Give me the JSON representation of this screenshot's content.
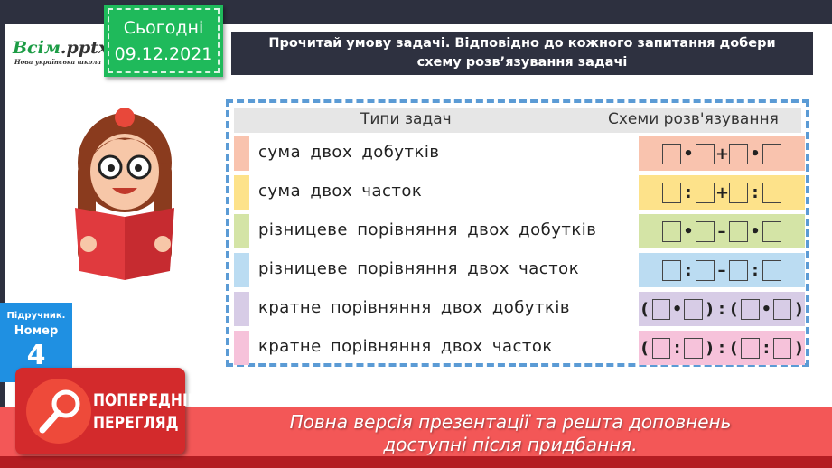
{
  "logo": {
    "brand_main": "Всім",
    "brand_ext": ".pptx",
    "tagline": "Нова українська школа"
  },
  "date_badge": {
    "label": "Сьогодні",
    "date": "09.12.2021"
  },
  "title": {
    "line1": "Прочитай умову задачі. Відповідно до кожного запитання добери",
    "line2": "схему розв’язування задачі"
  },
  "table": {
    "col1": "Типи задач",
    "col2": "Схеми розв'язування",
    "rows": [
      {
        "type": "сума двох добутків",
        "scheme": "□·□+□·□",
        "color": "#f9c3ae"
      },
      {
        "type": "сума двох часток",
        "scheme": "□:□+□:□",
        "color": "#fde28a"
      },
      {
        "type": "різницеве порівняння двох добутків",
        "scheme": "□·□–□·□",
        "color": "#d4e4a6"
      },
      {
        "type": "різницеве порівняння двох часток",
        "scheme": "□:□–□:□",
        "color": "#bbdcf2"
      },
      {
        "type": "кратне порівняння двох добутків",
        "scheme": "(□·□):(□·□)",
        "color": "#d7cce6"
      },
      {
        "type": "кратне порівняння двох часток",
        "scheme": "(□:□):(□:□)",
        "color": "#f6c2da"
      }
    ]
  },
  "textbook": {
    "label": "Підручник.",
    "number_label": "Номер",
    "number": "4"
  },
  "preview": {
    "line1": "ПОПЕРЕДНІЙ",
    "line2": "ПЕРЕГЛЯД"
  },
  "banner": {
    "line1": "Повна версія презентації та решта доповнень",
    "line2": "доступні після придбання."
  }
}
